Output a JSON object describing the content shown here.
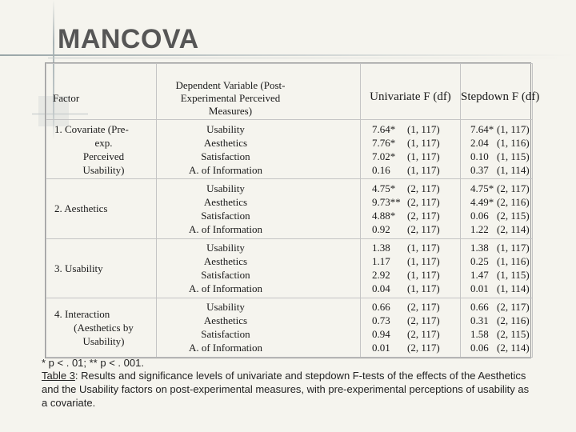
{
  "title": "MANCOVA",
  "table": {
    "headers": {
      "factor": "Factor",
      "dependent_variable": "Dependent Variable (Post-Experimental Perceived Measures)",
      "univariate": "Univariate F (df)",
      "stepdown": "Stepdown F (df)"
    },
    "rows": [
      {
        "factor_lines": [
          "1. Covariate (Pre-",
          "exp.",
          "Perceived",
          "Usability)"
        ],
        "dvs": [
          "Usability",
          "Aesthetics",
          "Satisfaction",
          "A. of Information"
        ],
        "univariate": [
          {
            "f": "7.64*",
            "df": "(1, 117)"
          },
          {
            "f": "7.76*",
            "df": "(1, 117)"
          },
          {
            "f": "7.02*",
            "df": "(1, 117)"
          },
          {
            "f": "0.16",
            "df": "(1, 117)"
          }
        ],
        "stepdown": [
          {
            "f": "7.64*",
            "df": "(1, 117)"
          },
          {
            "f": "2.04",
            "df": "(1, 116)"
          },
          {
            "f": "0.10",
            "df": "(1, 115)"
          },
          {
            "f": "0.37",
            "df": "(1, 114)"
          }
        ]
      },
      {
        "factor_lines": [
          "2. Aesthetics"
        ],
        "dvs": [
          "Usability",
          "Aesthetics",
          "Satisfaction",
          "A. of Information"
        ],
        "univariate": [
          {
            "f": "4.75*",
            "df": "(2, 117)"
          },
          {
            "f": "9.73**",
            "df": "(2, 117)"
          },
          {
            "f": "4.88*",
            "df": "(2, 117)"
          },
          {
            "f": "0.92",
            "df": "(2, 117)"
          }
        ],
        "stepdown": [
          {
            "f": "4.75*",
            "df": "(2, 117)"
          },
          {
            "f": "4.49*",
            "df": "(2, 116)"
          },
          {
            "f": "0.06",
            "df": "(2, 115)"
          },
          {
            "f": "1.22",
            "df": "(2, 114)"
          }
        ]
      },
      {
        "factor_lines": [
          "3. Usability"
        ],
        "dvs": [
          "Usability",
          "Aesthetics",
          "Satisfaction",
          "A. of Information"
        ],
        "univariate": [
          {
            "f": "1.38",
            "df": "(1, 117)"
          },
          {
            "f": "1.17",
            "df": "(1, 117)"
          },
          {
            "f": "2.92",
            "df": "(1, 117)"
          },
          {
            "f": "0.04",
            "df": "(1, 117)"
          }
        ],
        "stepdown": [
          {
            "f": "1.38",
            "df": "(1, 117)"
          },
          {
            "f": "0.25",
            "df": "(1, 116)"
          },
          {
            "f": "1.47",
            "df": "(1, 115)"
          },
          {
            "f": "0.01",
            "df": "(1, 114)"
          }
        ]
      },
      {
        "factor_lines": [
          "4. Interaction",
          "(Aesthetics by",
          "Usability)"
        ],
        "dvs": [
          "Usability",
          "Aesthetics",
          "Satisfaction",
          "A. of Information"
        ],
        "univariate": [
          {
            "f": "0.66",
            "df": "(2, 117)"
          },
          {
            "f": "0.73",
            "df": "(2, 117)"
          },
          {
            "f": "0.94",
            "df": "(2, 117)"
          },
          {
            "f": "0.01",
            "df": "(2, 117)"
          }
        ],
        "stepdown": [
          {
            "f": "0.66",
            "df": "(2, 117)"
          },
          {
            "f": "0.31",
            "df": "(2, 116)"
          },
          {
            "f": "1.58",
            "df": "(2, 115)"
          },
          {
            "f": "0.06",
            "df": "(2, 114)"
          }
        ]
      }
    ]
  },
  "footnote": "* p < . 01; ** p < . 001.",
  "caption": {
    "label": "Table 3",
    "text": ": Results and significance levels of univariate and stepdown F-tests of the effects of the Aesthetics and the Usability factors on post-experimental measures, with pre-experimental perceptions of usability as a covariate."
  },
  "colors": {
    "background": "#f5f4ee",
    "title": "#565656",
    "border": "#c4c4c4"
  }
}
